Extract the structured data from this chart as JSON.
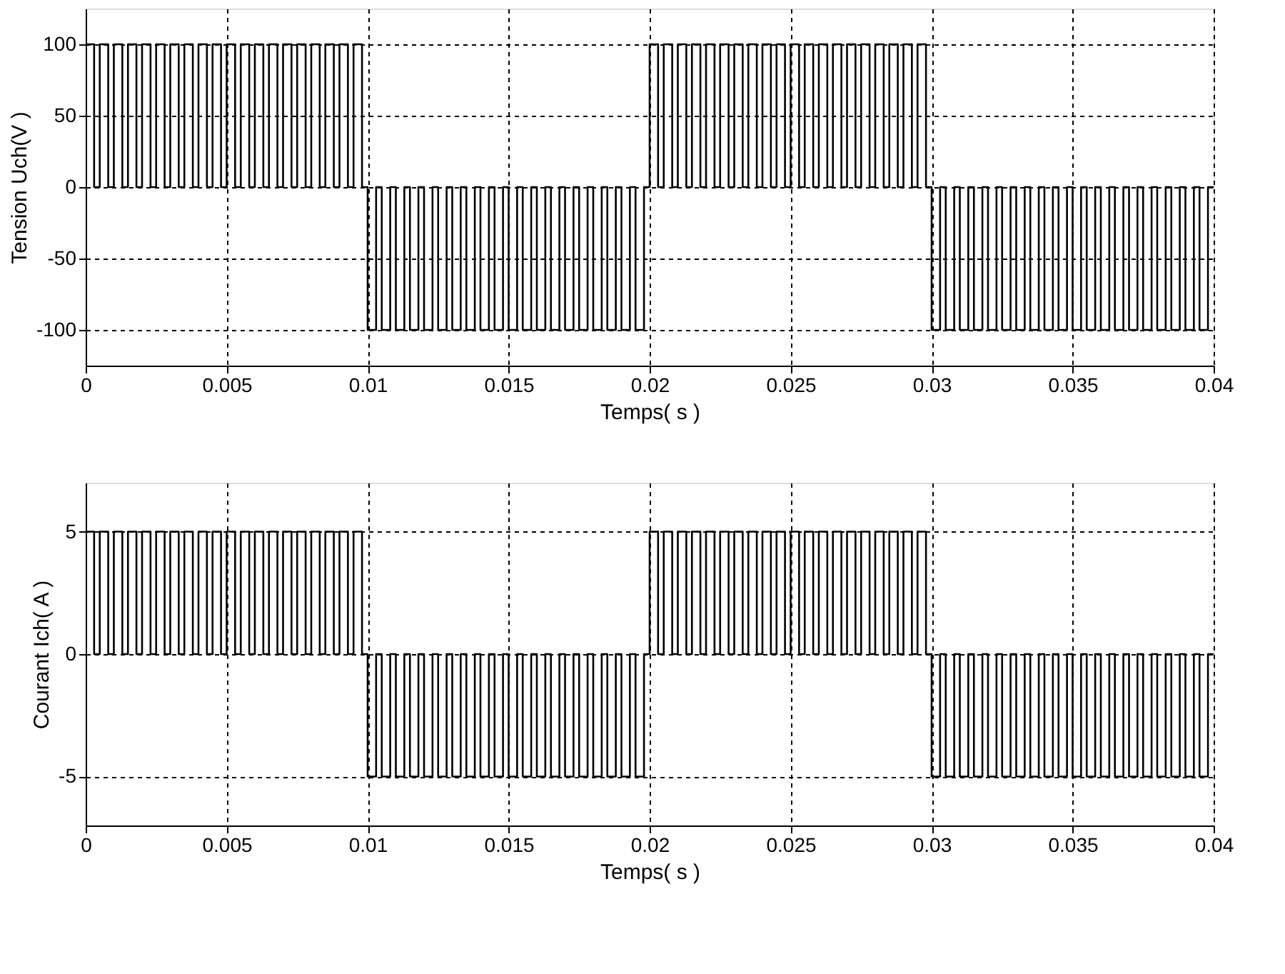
{
  "chart_data": [
    {
      "type": "step",
      "xlabel": "Temps( s )",
      "ylabel": "Tension Uch(V )",
      "xlim": [
        0,
        0.04
      ],
      "ylim": [
        -125,
        125
      ],
      "xticks": [
        0,
        0.005,
        0.01,
        0.015,
        0.02,
        0.025,
        0.03,
        0.035,
        0.04
      ],
      "yticks": [
        -100,
        -50,
        0,
        50,
        100
      ],
      "grid": true,
      "line_style": "solid",
      "x": [
        0,
        0.0003,
        0.0005,
        0.0008,
        0.001,
        0.0013,
        0.0015,
        0.0018,
        0.002,
        0.0023,
        0.0025,
        0.0028,
        0.003,
        0.0033,
        0.0035,
        0.0038,
        0.004,
        0.0043,
        0.0045,
        0.0048,
        0.005,
        0.0053,
        0.0055,
        0.0058,
        0.006,
        0.0063,
        0.0065,
        0.0068,
        0.007,
        0.0073,
        0.0075,
        0.0078,
        0.008,
        0.0083,
        0.0085,
        0.0088,
        0.009,
        0.0093,
        0.0095,
        0.0098,
        0.01,
        0.0103,
        0.0105,
        0.0108,
        0.011,
        0.0113,
        0.0115,
        0.0118,
        0.012,
        0.0123,
        0.0125,
        0.0128,
        0.013,
        0.0133,
        0.0135,
        0.0138,
        0.014,
        0.0143,
        0.0145,
        0.0148,
        0.015,
        0.0153,
        0.0155,
        0.0158,
        0.016,
        0.0163,
        0.0165,
        0.0168,
        0.017,
        0.0173,
        0.0175,
        0.0178,
        0.018,
        0.0183,
        0.0185,
        0.0188,
        0.019,
        0.0193,
        0.0195,
        0.0198,
        0.02,
        0.0203,
        0.0205,
        0.0208,
        0.021,
        0.0213,
        0.0215,
        0.0218,
        0.022,
        0.0223,
        0.0225,
        0.0228,
        0.023,
        0.0233,
        0.0235,
        0.0238,
        0.024,
        0.0243,
        0.0245,
        0.0248,
        0.025,
        0.0253,
        0.0255,
        0.0258,
        0.026,
        0.0263,
        0.0265,
        0.0268,
        0.027,
        0.0273,
        0.0275,
        0.0278,
        0.028,
        0.0283,
        0.0285,
        0.0288,
        0.029,
        0.0293,
        0.0295,
        0.0298,
        0.03,
        0.0303,
        0.0305,
        0.0308,
        0.031,
        0.0313,
        0.0315,
        0.0318,
        0.032,
        0.0323,
        0.0325,
        0.0328,
        0.033,
        0.0333,
        0.0335,
        0.0338,
        0.034,
        0.0343,
        0.0345,
        0.0348,
        0.035,
        0.0353,
        0.0355,
        0.0358,
        0.036,
        0.0363,
        0.0365,
        0.0368,
        0.037,
        0.0373,
        0.0375,
        0.0378,
        0.038,
        0.0383,
        0.0385,
        0.0388,
        0.039,
        0.0393,
        0.0395,
        0.0398,
        0.04
      ],
      "series": [
        {
          "color": "#000000",
          "values": [
            100,
            0,
            100,
            0,
            100,
            0,
            100,
            0,
            100,
            0,
            100,
            0,
            100,
            0,
            100,
            0,
            100,
            0,
            100,
            0,
            100,
            0,
            100,
            0,
            100,
            0,
            100,
            0,
            100,
            0,
            100,
            0,
            100,
            0,
            100,
            0,
            100,
            0,
            100,
            0,
            -100,
            0,
            -100,
            0,
            -100,
            0,
            -100,
            0,
            -100,
            0,
            -100,
            0,
            -100,
            0,
            -100,
            0,
            -100,
            0,
            -100,
            0,
            -100,
            0,
            -100,
            0,
            -100,
            0,
            -100,
            0,
            -100,
            0,
            -100,
            0,
            -100,
            0,
            -100,
            0,
            -100,
            0,
            -100,
            0,
            100,
            0,
            100,
            0,
            100,
            0,
            100,
            0,
            100,
            0,
            100,
            0,
            100,
            0,
            100,
            0,
            100,
            0,
            100,
            0,
            100,
            0,
            100,
            0,
            100,
            0,
            100,
            0,
            100,
            0,
            100,
            0,
            100,
            0,
            100,
            0,
            100,
            0,
            100,
            0,
            -100,
            0,
            -100,
            0,
            -100,
            0,
            -100,
            0,
            -100,
            0,
            -100,
            0,
            -100,
            0,
            -100,
            0,
            -100,
            0,
            -100,
            0,
            -100,
            0,
            -100,
            0,
            -100,
            0,
            -100,
            0,
            -100,
            0,
            -100,
            0,
            -100,
            0,
            -100,
            0,
            -100,
            0,
            -100,
            0,
            0
          ]
        }
      ]
    },
    {
      "type": "step",
      "xlabel": "Temps( s )",
      "ylabel": "Courant Ich( A )",
      "xlim": [
        0,
        0.04
      ],
      "ylim": [
        -7,
        7
      ],
      "xticks": [
        0,
        0.005,
        0.01,
        0.015,
        0.02,
        0.025,
        0.03,
        0.035,
        0.04
      ],
      "yticks": [
        -5,
        0,
        5
      ],
      "grid": true,
      "line_style": "solid",
      "x": [
        0,
        0.0003,
        0.0005,
        0.0008,
        0.001,
        0.0013,
        0.0015,
        0.0018,
        0.002,
        0.0023,
        0.0025,
        0.0028,
        0.003,
        0.0033,
        0.0035,
        0.0038,
        0.004,
        0.0043,
        0.0045,
        0.0048,
        0.005,
        0.0053,
        0.0055,
        0.0058,
        0.006,
        0.0063,
        0.0065,
        0.0068,
        0.007,
        0.0073,
        0.0075,
        0.0078,
        0.008,
        0.0083,
        0.0085,
        0.0088,
        0.009,
        0.0093,
        0.0095,
        0.0098,
        0.01,
        0.0103,
        0.0105,
        0.0108,
        0.011,
        0.0113,
        0.0115,
        0.0118,
        0.012,
        0.0123,
        0.0125,
        0.0128,
        0.013,
        0.0133,
        0.0135,
        0.0138,
        0.014,
        0.0143,
        0.0145,
        0.0148,
        0.015,
        0.0153,
        0.0155,
        0.0158,
        0.016,
        0.0163,
        0.0165,
        0.0168,
        0.017,
        0.0173,
        0.0175,
        0.0178,
        0.018,
        0.0183,
        0.0185,
        0.0188,
        0.019,
        0.0193,
        0.0195,
        0.0198,
        0.02,
        0.0203,
        0.0205,
        0.0208,
        0.021,
        0.0213,
        0.0215,
        0.0218,
        0.022,
        0.0223,
        0.0225,
        0.0228,
        0.023,
        0.0233,
        0.0235,
        0.0238,
        0.024,
        0.0243,
        0.0245,
        0.0248,
        0.025,
        0.0253,
        0.0255,
        0.0258,
        0.026,
        0.0263,
        0.0265,
        0.0268,
        0.027,
        0.0273,
        0.0275,
        0.0278,
        0.028,
        0.0283,
        0.0285,
        0.0288,
        0.029,
        0.0293,
        0.0295,
        0.0298,
        0.03,
        0.0303,
        0.0305,
        0.0308,
        0.031,
        0.0313,
        0.0315,
        0.0318,
        0.032,
        0.0323,
        0.0325,
        0.0328,
        0.033,
        0.0333,
        0.0335,
        0.0338,
        0.034,
        0.0343,
        0.0345,
        0.0348,
        0.035,
        0.0353,
        0.0355,
        0.0358,
        0.036,
        0.0363,
        0.0365,
        0.0368,
        0.037,
        0.0373,
        0.0375,
        0.0378,
        0.038,
        0.0383,
        0.0385,
        0.0388,
        0.039,
        0.0393,
        0.0395,
        0.0398,
        0.04
      ],
      "series": [
        {
          "color": "#000000",
          "values": [
            5,
            0,
            5,
            0,
            5,
            0,
            5,
            0,
            5,
            0,
            5,
            0,
            5,
            0,
            5,
            0,
            5,
            0,
            5,
            0,
            5,
            0,
            5,
            0,
            5,
            0,
            5,
            0,
            5,
            0,
            5,
            0,
            5,
            0,
            5,
            0,
            5,
            0,
            5,
            0,
            -5,
            0,
            -5,
            0,
            -5,
            0,
            -5,
            0,
            -5,
            0,
            -5,
            0,
            -5,
            0,
            -5,
            0,
            -5,
            0,
            -5,
            0,
            -5,
            0,
            -5,
            0,
            -5,
            0,
            -5,
            0,
            -5,
            0,
            -5,
            0,
            -5,
            0,
            -5,
            0,
            -5,
            0,
            -5,
            0,
            5,
            0,
            5,
            0,
            5,
            0,
            5,
            0,
            5,
            0,
            5,
            0,
            5,
            0,
            5,
            0,
            5,
            0,
            5,
            0,
            5,
            0,
            5,
            0,
            5,
            0,
            5,
            0,
            5,
            0,
            5,
            0,
            5,
            0,
            5,
            0,
            5,
            0,
            5,
            0,
            -5,
            0,
            -5,
            0,
            -5,
            0,
            -5,
            0,
            -5,
            0,
            -5,
            0,
            -5,
            0,
            -5,
            0,
            -5,
            0,
            -5,
            0,
            -5,
            0,
            -5,
            0,
            -5,
            0,
            -5,
            0,
            -5,
            0,
            -5,
            0,
            -5,
            0,
            -5,
            0,
            -5,
            0,
            -5,
            0,
            0
          ]
        }
      ]
    }
  ]
}
